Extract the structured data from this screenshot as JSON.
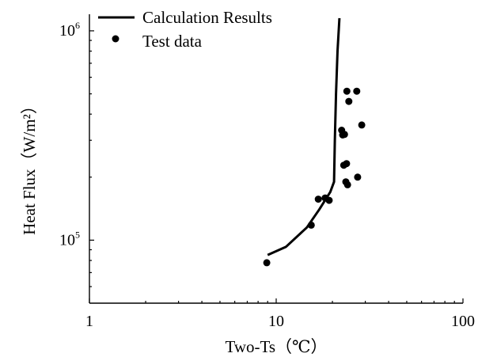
{
  "chart_data": {
    "type": "scatter",
    "xscale": "log",
    "yscale": "log",
    "xlim": [
      1,
      100
    ],
    "ylim": [
      50000,
      1200000
    ],
    "x_ticks": [
      {
        "value": 1,
        "label": "1"
      },
      {
        "value": 10,
        "label": "10"
      },
      {
        "value": 100,
        "label": "100"
      }
    ],
    "y_ticks": [
      {
        "value": 100000,
        "base": "10",
        "exp": "5"
      },
      {
        "value": 1000000,
        "base": "10",
        "exp": "6"
      }
    ],
    "xlabel": "Two-Ts（℃）",
    "ylabel": "Heat Flux（W/m²）",
    "grid": false,
    "legend": "top-left",
    "series": [
      {
        "name": "Calculation Results",
        "type": "line",
        "color": "#000000",
        "x": [
          9.0,
          11.3,
          14.6,
          17.0,
          19.5,
          20.4,
          20.6,
          20.9,
          21.3,
          21.8
        ],
        "y": [
          85000,
          93000,
          115000,
          140000,
          170000,
          190000,
          300000,
          500000,
          800000,
          1150000
        ]
      },
      {
        "name": "Test data",
        "type": "scatter",
        "color": "#000000",
        "x": [
          8.9,
          15.4,
          16.8,
          18.3,
          19.2,
          22.4,
          22.7,
          23.2,
          23.0,
          23.8,
          23.6,
          24.1,
          24.5,
          27.0,
          27.3,
          28.7,
          23.9
        ],
        "y": [
          78000,
          118000,
          157000,
          159000,
          155000,
          335000,
          318000,
          320000,
          228000,
          232000,
          190000,
          184000,
          460000,
          515000,
          200000,
          355000,
          515000
        ]
      }
    ]
  }
}
